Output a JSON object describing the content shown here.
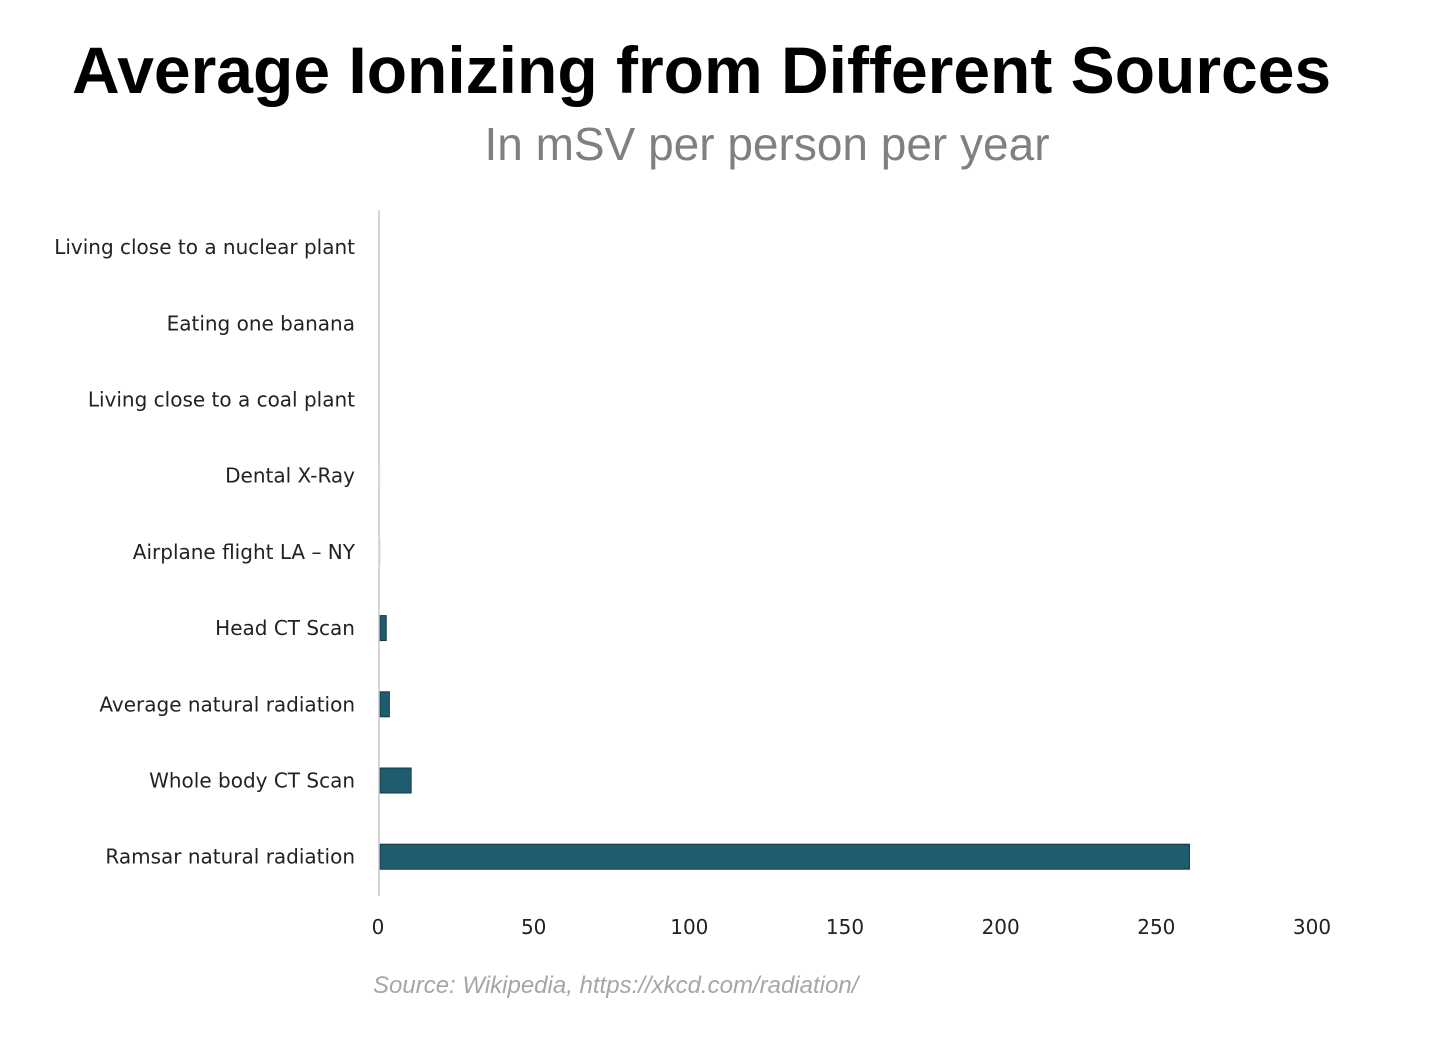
{
  "chart_data": {
    "type": "bar",
    "orientation": "horizontal",
    "title": "Average Ionizing from Different Sources",
    "subtitle": "In mSV per person per year",
    "xlabel": "",
    "ylabel": "",
    "categories": [
      "Living close to a nuclear plant",
      "Eating one banana",
      "Living close to a coal plant",
      "Dental X-Ray",
      "Airplane flight LA – NY",
      "Head CT Scan",
      "Average natural radiation",
      "Whole body CT Scan",
      "Ramsar natural radiation"
    ],
    "values": [
      0.0001,
      0.0001,
      0.0003,
      0.005,
      0.04,
      2,
      3,
      10,
      260
    ],
    "xlim": [
      0,
      300
    ],
    "xticks": [
      0,
      50,
      100,
      150,
      200,
      250,
      300
    ],
    "grid": false,
    "legend": "none",
    "bar_color": "#1f5c6e",
    "axis_color": "#c8c8c8",
    "source": "Source: Wikipedia, https://xkcd.com/radiation/"
  }
}
